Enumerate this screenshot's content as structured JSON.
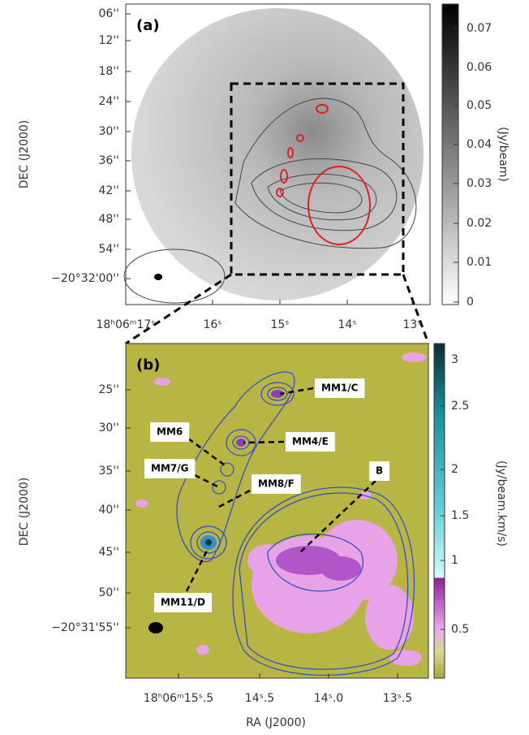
{
  "panel_a": {
    "label": "(a)",
    "y_axis_label": "DEC (J2000)",
    "y_ticks": [
      "06''",
      "12''",
      "18''",
      "24''",
      "30''",
      "36''",
      "42''",
      "48''",
      "54''",
      "−20°32'00''"
    ],
    "x_ticks": [
      "18ʰ06ᵐ17ˢ",
      "16ˢ",
      "15ˢ",
      "14ˢ",
      "13ˢ"
    ],
    "colorbar": {
      "label": "(Jy/beam)",
      "ticks": [
        "0.07",
        "0.06",
        "0.05",
        "0.04",
        "0.03",
        "0.02",
        "0.01",
        "0"
      ]
    }
  },
  "panel_b": {
    "label": "(b)",
    "y_axis_label": "DEC (J2000)",
    "x_axis_label": "RA (J2000)",
    "y_ticks": [
      "25''",
      "30''",
      "35''",
      "40''",
      "45''",
      "50''",
      "−20°31'55''"
    ],
    "x_ticks": [
      "18ʰ06ᵐ15ˢ.5",
      "14ˢ.5",
      "14ˢ.0",
      "13ˢ.5"
    ],
    "colorbar": {
      "label": "(Jy/beam.km/s)",
      "ticks": [
        "3",
        "2.5",
        "2",
        "1.5",
        "1",
        "0.5"
      ]
    },
    "annotations": [
      "MM1/C",
      "MM6",
      "MM4/E",
      "MM7/G",
      "MM8/F",
      "B",
      "MM11/D"
    ]
  }
}
